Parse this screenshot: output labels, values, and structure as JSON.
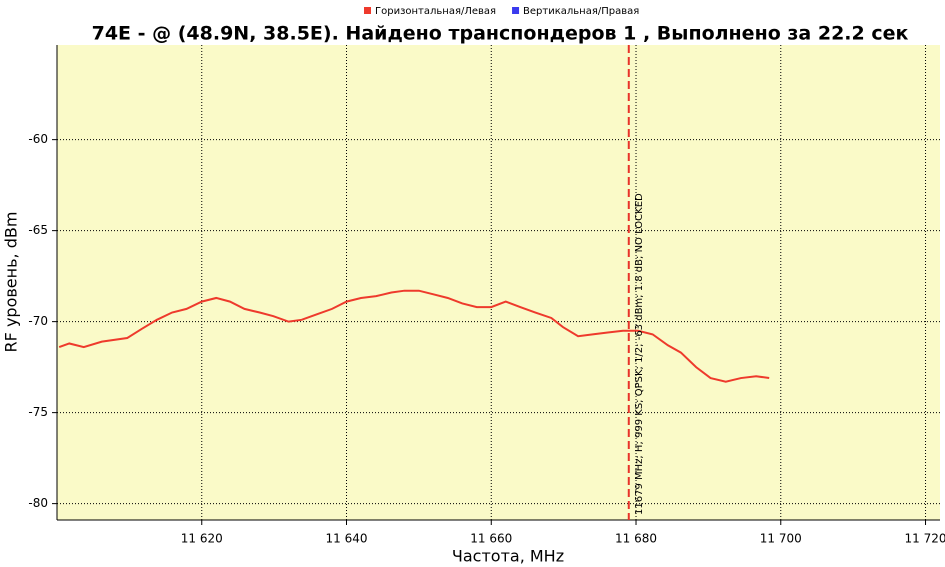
{
  "chart_data": {
    "type": "line",
    "title": "74E -  @  (48.9N, 38.5E). Найдено транспондеров 1 , Выполнено за 22.2 сек",
    "x_label": "Частота, MHz",
    "y_label": "RF уровень, dBm",
    "x": [
      11600.3,
      11601.7,
      11603.7,
      11606.2,
      11609.7,
      11611.7,
      11613.8,
      11615.9,
      11617.9,
      11620,
      11622,
      11623.9,
      11625.9,
      11628,
      11629.9,
      11632,
      11633.8,
      11635.9,
      11638,
      11640,
      11642,
      11644.1,
      11646.2,
      11648,
      11650,
      11652,
      11654,
      11656,
      11658,
      11660,
      11662,
      11664,
      11666.1,
      11668.3,
      11669.9,
      11672,
      11674,
      11676.1,
      11678.2,
      11680.3,
      11682.3,
      11684.4,
      11686.2,
      11688.3,
      11690.3,
      11692.4,
      11694.5,
      11696.6,
      11698.4
    ],
    "series": [
      {
        "name": "Горизонтальная/Левая",
        "color": "#ee3a2c",
        "values": [
          -71.4,
          -71.2,
          -71.4,
          -71.1,
          -70.9,
          -70.4,
          -69.9,
          -69.5,
          -69.3,
          -68.9,
          -68.7,
          -68.9,
          -69.3,
          -69.5,
          -69.7,
          -70.0,
          -69.9,
          -69.6,
          -69.3,
          -68.9,
          -68.7,
          -68.6,
          -68.4,
          -68.3,
          -68.3,
          -68.5,
          -68.7,
          -69.0,
          -69.2,
          -69.2,
          -68.9,
          -69.2,
          -69.5,
          -69.8,
          -70.3,
          -70.8,
          -70.7,
          -70.6,
          -70.5,
          -70.5,
          -70.7,
          -71.3,
          -71.7,
          -72.5,
          -73.1,
          -73.3,
          -73.1,
          -73.0,
          -73.1
        ]
      },
      {
        "name": "Вертикальная/Правая",
        "color": "#3a3aee",
        "values": [
          null,
          null,
          null,
          null,
          null,
          null,
          null,
          null,
          null,
          null,
          null,
          null,
          null,
          null,
          null,
          null,
          null,
          null,
          null,
          null,
          null,
          null,
          null,
          null,
          null,
          null,
          null,
          null,
          null,
          null,
          null,
          null,
          null,
          null,
          null,
          null,
          null,
          null,
          null,
          null,
          null,
          null,
          null,
          null,
          null,
          null,
          null,
          null,
          null
        ]
      }
    ],
    "markers": [
      {
        "x": 11679,
        "color": "#e8332a",
        "label": "11679 MHz; H; 999 KS; QPSK; 1/2; -63 dBm; 1.8 dB; NO LOCKED"
      }
    ],
    "xlim": [
      11600,
      11722
    ],
    "ylim": [
      -80.9,
      -54.8
    ],
    "xticks": [
      {
        "value": 11620,
        "label": "11 620"
      },
      {
        "value": 11640,
        "label": "11 640"
      },
      {
        "value": 11660,
        "label": "11 660"
      },
      {
        "value": 11680,
        "label": "11 680"
      },
      {
        "value": 11700,
        "label": "11 700"
      },
      {
        "value": 11720,
        "label": "11 720"
      }
    ],
    "yticks": [
      -60,
      -65,
      -70,
      -75,
      -80
    ],
    "grid": true,
    "background": "#fafac8",
    "legend": "top"
  }
}
